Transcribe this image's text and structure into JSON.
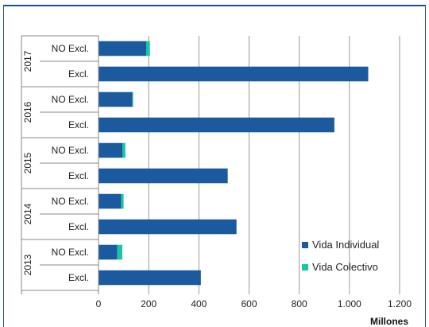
{
  "chart_data": {
    "type": "bar",
    "orientation": "horizontal",
    "stacked": true,
    "groups": [
      {
        "year": "2017",
        "rows": [
          {
            "label": "NO Excl.",
            "values": [
              190,
              15
            ]
          },
          {
            "label": "Excl.",
            "values": [
              1075,
              0
            ]
          }
        ]
      },
      {
        "year": "2016",
        "rows": [
          {
            "label": "NO Excl.",
            "values": [
              135,
              3
            ]
          },
          {
            "label": "Excl.",
            "values": [
              940,
              0
            ]
          }
        ]
      },
      {
        "year": "2015",
        "rows": [
          {
            "label": "NO Excl.",
            "values": [
              95,
              12
            ]
          },
          {
            "label": "Excl.",
            "values": [
              515,
              0
            ]
          }
        ]
      },
      {
        "year": "2014",
        "rows": [
          {
            "label": "NO Excl.",
            "values": [
              90,
              10
            ]
          },
          {
            "label": "Excl.",
            "values": [
              550,
              0
            ]
          }
        ]
      },
      {
        "year": "2013",
        "rows": [
          {
            "label": "NO Excl.",
            "values": [
              75,
              20
            ]
          },
          {
            "label": "Excl.",
            "values": [
              408,
              0
            ]
          }
        ]
      }
    ],
    "series": [
      {
        "name": "Vida Individual",
        "color": "#1b5a9e"
      },
      {
        "name": "Vida Colectivo",
        "color": "#17c6a3"
      }
    ],
    "xlim": [
      0,
      1200
    ],
    "xticks": [
      0,
      200,
      400,
      600,
      800,
      1000,
      1200
    ],
    "xtick_labels": [
      "0",
      "200",
      "400",
      "600",
      "800",
      "1.000",
      "1.200"
    ],
    "xlabel": "Millones",
    "grid": "vertical",
    "legend_position": "bottom-right"
  }
}
